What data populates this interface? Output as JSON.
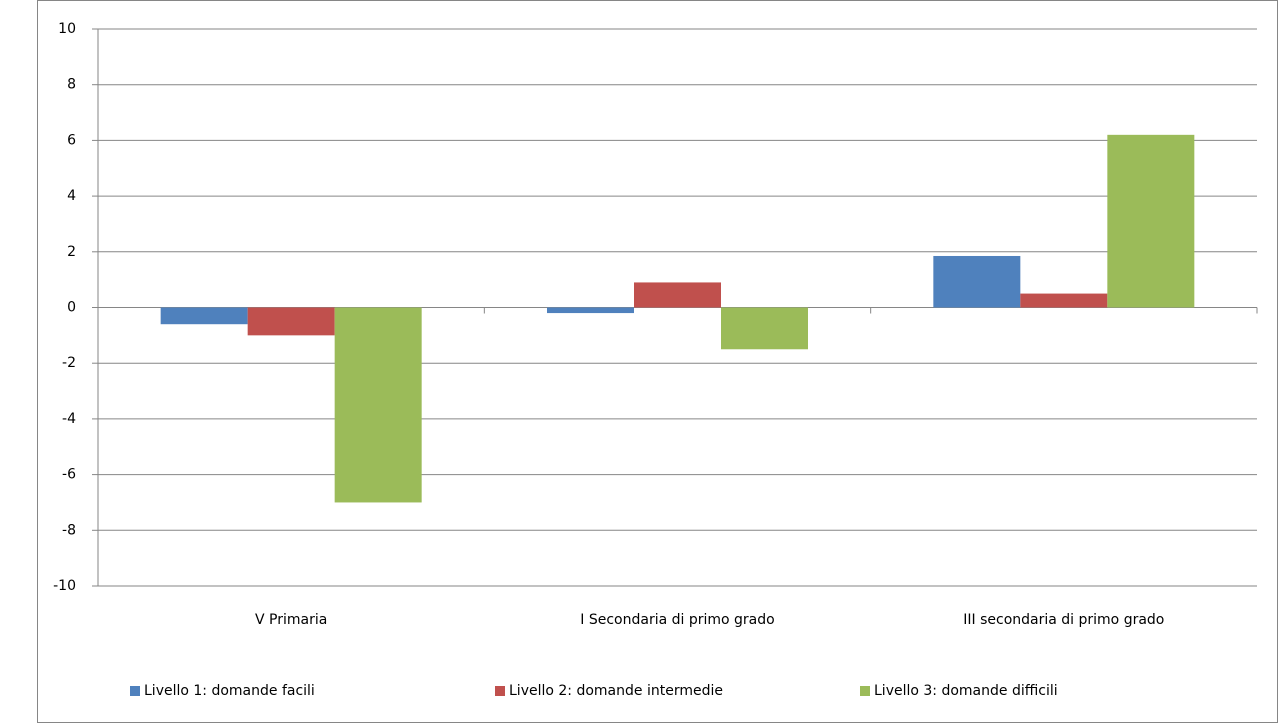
{
  "chart_data": {
    "type": "bar",
    "categories": [
      "V Primaria",
      "I Secondaria di primo grado",
      "III secondaria di primo grado"
    ],
    "series": [
      {
        "name": "Livello 1: domande facili",
        "color": "#4f81bd",
        "values": [
          -0.6,
          -0.2,
          1.85
        ]
      },
      {
        "name": "Livello 2: domande intermedie",
        "color": "#c0504d",
        "values": [
          -1.0,
          0.9,
          0.5
        ]
      },
      {
        "name": "Livello 3: domande difficili",
        "color": "#9bbb59",
        "values": [
          -7.0,
          -1.5,
          6.2
        ]
      }
    ],
    "ylim": [
      -10,
      10
    ],
    "yticks": [
      -10,
      -8,
      -6,
      -4,
      -2,
      0,
      2,
      4,
      6,
      8,
      10
    ],
    "grid": true,
    "legend": "bottom"
  }
}
